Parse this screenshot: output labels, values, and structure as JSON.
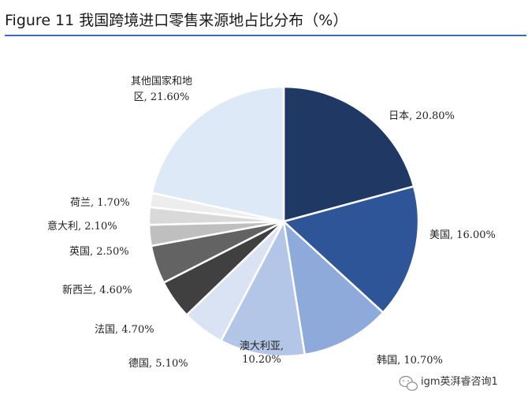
{
  "figure": {
    "title": "Figure 11 我国跨境进口零售来源地占比分布（%）"
  },
  "watermark": {
    "text": "igm英湃睿咨询1",
    "icon": "wechat-icon"
  },
  "chart_data": {
    "type": "pie",
    "title": "Figure 11 我国跨境进口零售来源地占比分布（%）",
    "unit": "%",
    "start_angle_deg": 0,
    "direction": "clockwise",
    "slices": [
      {
        "label": "日本",
        "value": 20.8,
        "text": "日本, 20.80%",
        "color": "#1f3864"
      },
      {
        "label": "美国",
        "value": 16.0,
        "text": "美国, 16.00%",
        "color": "#2e5597"
      },
      {
        "label": "韩国",
        "value": 10.7,
        "text": "韩国, 10.70%",
        "color": "#8eaadb"
      },
      {
        "label": "澳大利亚",
        "value": 10.2,
        "text": "澳大利亚, 10.20%",
        "lines": [
          "澳大利亚,",
          "10.20%"
        ],
        "color": "#b4c6e7"
      },
      {
        "label": "德国",
        "value": 5.1,
        "text": "德国, 5.10%",
        "color": "#dae3f3"
      },
      {
        "label": "法国",
        "value": 4.7,
        "text": "法国, 4.70%",
        "color": "#404040"
      },
      {
        "label": "新西兰",
        "value": 4.6,
        "text": "新西兰, 4.60%",
        "color": "#636363"
      },
      {
        "label": "英国",
        "value": 2.5,
        "text": "英国, 2.50%",
        "color": "#bfbfbf"
      },
      {
        "label": "意大利",
        "value": 2.1,
        "text": "意大利, 2.10%",
        "color": "#d9d9d9"
      },
      {
        "label": "荷兰",
        "value": 1.7,
        "text": "荷兰, 1.70%",
        "color": "#ededed"
      },
      {
        "label": "其他国家和地区",
        "value": 21.6,
        "text": "其他国家和地区, 21.60%",
        "lines": [
          "其他国家和地",
          "区, 21.60%"
        ],
        "color": "#dee9f7"
      }
    ]
  }
}
